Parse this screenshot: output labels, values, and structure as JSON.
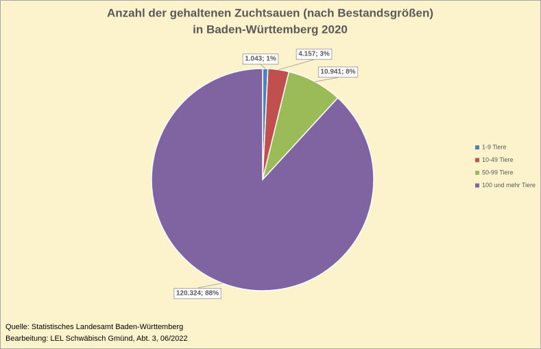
{
  "chart_data": {
    "type": "pie",
    "title": [
      "Anzahl der gehaltenen Zuchtsauen (nach Bestandsgrößen)",
      "in Baden-Württemberg 2020"
    ],
    "categories": [
      "1-9 Tiere",
      "10-49 Tiere",
      "50-99 Tiere",
      "100 und mehr Tiere"
    ],
    "values": [
      1043,
      4157,
      10941,
      120324
    ],
    "value_labels": [
      "1.043; 1%",
      "4.157; 3%",
      "10.941; 8%",
      "120.324; 88%"
    ],
    "colors": [
      "#4f81bd",
      "#c0504d",
      "#9bbb59",
      "#8064a2"
    ],
    "legend": "right",
    "notes": [
      "Quelle: Statistisches Landesamt Baden-Württemberg",
      "Bearbeitung: LEL Schwäbisch Gmünd, Abt. 3, 06/2022"
    ]
  }
}
